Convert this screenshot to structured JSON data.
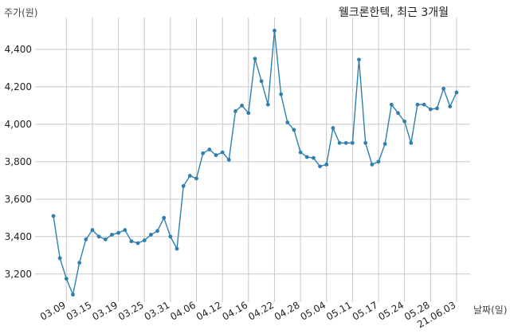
{
  "chart_data": {
    "type": "line",
    "title": "웰크론한텍, 최근 3개월",
    "ylabel": "주가(원)",
    "xlabel": "날짜(일)",
    "ylim": [
      3050,
      4570
    ],
    "y_ticks": [
      3200,
      3400,
      3600,
      3800,
      4000,
      4200,
      4400
    ],
    "y_tick_labels": [
      "3,200",
      "3,400",
      "3,600",
      "3,800",
      "4,000",
      "4,200",
      "4,400"
    ],
    "x_tick_labels": [
      "03.09",
      "03.15",
      "03.19",
      "03.25",
      "03.31",
      "04.06",
      "04.12",
      "04.16",
      "04.22",
      "04.28",
      "05.04",
      "05.11",
      "05.17",
      "05.24",
      "05.28",
      "21.06.03"
    ],
    "x_tick_indices": [
      2,
      6,
      10,
      14,
      18,
      22,
      26,
      30,
      34,
      38,
      42,
      46,
      50,
      54,
      58,
      62
    ],
    "grid": true,
    "color": "#2f7fae",
    "series": [
      {
        "values": [
          3510,
          3285,
          3175,
          3090,
          3260,
          3385,
          3435,
          3400,
          3385,
          3410,
          3420,
          3435,
          3375,
          3365,
          3380,
          3410,
          3430,
          3500,
          3400,
          3335,
          3670,
          3725,
          3710,
          3845,
          3865,
          3835,
          3850,
          3810,
          4070,
          4100,
          4060,
          4350,
          4230,
          4105,
          4500,
          4160,
          4010,
          3970,
          3850,
          3825,
          3820,
          3775,
          3785,
          3980,
          3900,
          3900,
          3900,
          4345,
          3900,
          3785,
          3800,
          3895,
          4105,
          4060,
          4015,
          3900,
          4105,
          4105,
          4080,
          4085,
          4190,
          4095,
          4170
        ]
      }
    ]
  }
}
